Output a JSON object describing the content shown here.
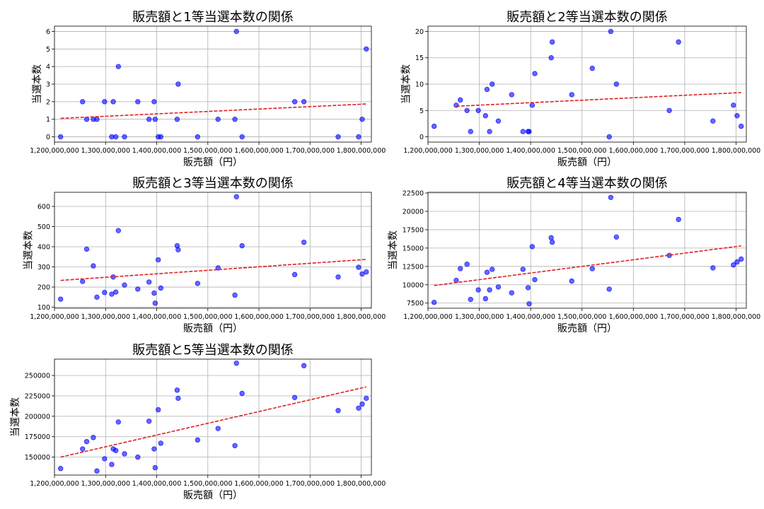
{
  "chart_data": [
    {
      "type": "scatter",
      "title": "販売額と1等当選本数の関係",
      "xlabel": "販売額（円）",
      "ylabel": "当選本数",
      "xlim": [
        1200000000,
        1820000000
      ],
      "ylim": [
        -0.3,
        6.3
      ],
      "xticks": [
        1200000000,
        1300000000,
        1400000000,
        1500000000,
        1600000000,
        1700000000,
        1800000000
      ],
      "xtick_labels": [
        "1,200,000,000",
        "1,300,000,000",
        "1,400,000,000",
        "1,500,000,000",
        "1,600,000,000",
        "1,700,000,000",
        "1,800,000,000"
      ],
      "yticks": [
        0,
        1,
        2,
        3,
        4,
        5,
        6
      ],
      "ytick_labels": [
        "0",
        "1",
        "2",
        "3",
        "4",
        "5",
        "6"
      ],
      "grid": true,
      "point_color": "#0000ff",
      "trend_color": "#e02020",
      "x": [
        1212000000,
        1255000000,
        1263000000,
        1276000000,
        1283000000,
        1298000000,
        1312000000,
        1315000000,
        1320000000,
        1325000000,
        1337000000,
        1363000000,
        1385000000,
        1395000000,
        1397000000,
        1403000000,
        1408000000,
        1440000000,
        1442000000,
        1480000000,
        1520000000,
        1553000000,
        1556000000,
        1567000000,
        1670000000,
        1688000000,
        1755000000,
        1795000000,
        1802000000,
        1810000000
      ],
      "y": [
        0,
        2,
        1,
        1,
        1,
        2,
        0,
        2,
        0,
        4,
        0,
        2,
        1,
        2,
        1,
        0,
        0,
        1,
        3,
        0,
        1,
        1,
        6,
        0,
        2,
        2,
        0,
        0,
        1,
        5
      ],
      "trend": {
        "x": [
          1212000000,
          1810000000
        ],
        "y": [
          1.05,
          1.87
        ]
      }
    },
    {
      "type": "scatter",
      "title": "販売額と2等当選本数の関係",
      "xlabel": "販売額（円）",
      "ylabel": "当選本数",
      "xlim": [
        1200000000,
        1820000000
      ],
      "ylim": [
        -1.0,
        21.0
      ],
      "xticks": [
        1200000000,
        1300000000,
        1400000000,
        1500000000,
        1600000000,
        1700000000,
        1800000000
      ],
      "xtick_labels": [
        "1,200,000,000",
        "1,300,000,000",
        "1,400,000,000",
        "1,500,000,000",
        "1,600,000,000",
        "1,700,000,000",
        "1,800,000,000"
      ],
      "yticks": [
        0,
        5,
        10,
        15,
        20
      ],
      "ytick_labels": [
        "0",
        "5",
        "10",
        "15",
        "20"
      ],
      "grid": true,
      "point_color": "#0000ff",
      "trend_color": "#e02020",
      "x": [
        1212000000,
        1255000000,
        1263000000,
        1276000000,
        1283000000,
        1298000000,
        1312000000,
        1315000000,
        1320000000,
        1325000000,
        1337000000,
        1363000000,
        1385000000,
        1395000000,
        1397000000,
        1403000000,
        1408000000,
        1440000000,
        1442000000,
        1480000000,
        1520000000,
        1553000000,
        1556000000,
        1567000000,
        1670000000,
        1688000000,
        1755000000,
        1795000000,
        1802000000,
        1810000000
      ],
      "y": [
        2,
        6,
        7,
        5,
        1,
        5,
        4,
        9,
        1,
        10,
        3,
        8,
        1,
        1,
        1,
        6,
        12,
        15,
        18,
        8,
        13,
        0,
        20,
        10,
        5,
        18,
        3,
        6,
        4,
        2
      ],
      "trend": {
        "x": [
          1255000000,
          1810000000
        ],
        "y": [
          5.8,
          8.4
        ]
      }
    },
    {
      "type": "scatter",
      "title": "販売額と3等当選本数の関係",
      "xlabel": "販売額（円）",
      "ylabel": "当選本数",
      "xlim": [
        1200000000,
        1820000000
      ],
      "ylim": [
        95,
        670
      ],
      "xticks": [
        1200000000,
        1300000000,
        1400000000,
        1500000000,
        1600000000,
        1700000000,
        1800000000
      ],
      "xtick_labels": [
        "1,200,000,000",
        "1,300,000,000",
        "1,400,000,000",
        "1,500,000,000",
        "1,600,000,000",
        "1,700,000,000",
        "1,800,000,000"
      ],
      "yticks": [
        100,
        200,
        300,
        400,
        500,
        600
      ],
      "ytick_labels": [
        "100",
        "200",
        "300",
        "400",
        "500",
        "600"
      ],
      "grid": true,
      "point_color": "#0000ff",
      "trend_color": "#e02020",
      "x": [
        1212000000,
        1255000000,
        1263000000,
        1276000000,
        1283000000,
        1298000000,
        1312000000,
        1315000000,
        1320000000,
        1325000000,
        1337000000,
        1363000000,
        1385000000,
        1395000000,
        1397000000,
        1403000000,
        1408000000,
        1440000000,
        1442000000,
        1480000000,
        1520000000,
        1553000000,
        1556000000,
        1567000000,
        1670000000,
        1688000000,
        1755000000,
        1795000000,
        1802000000,
        1810000000
      ],
      "y": [
        140,
        228,
        388,
        305,
        150,
        173,
        165,
        250,
        175,
        480,
        210,
        190,
        225,
        170,
        120,
        335,
        195,
        405,
        385,
        218,
        295,
        160,
        648,
        405,
        262,
        422,
        250,
        298,
        265,
        275
      ],
      "trend": {
        "x": [
          1212000000,
          1810000000
        ],
        "y": [
          233,
          337
        ]
      }
    },
    {
      "type": "scatter",
      "title": "販売額と4等当選本数の関係",
      "xlabel": "販売額（円）",
      "ylabel": "当選本数",
      "xlim": [
        1200000000,
        1820000000
      ],
      "ylim": [
        6800,
        22600
      ],
      "xticks": [
        1200000000,
        1300000000,
        1400000000,
        1500000000,
        1600000000,
        1700000000,
        1800000000
      ],
      "xtick_labels": [
        "1,200,000,000",
        "1,300,000,000",
        "1,400,000,000",
        "1,500,000,000",
        "1,600,000,000",
        "1,700,000,000",
        "1,800,000,000"
      ],
      "yticks": [
        7500,
        10000,
        12500,
        15000,
        17500,
        20000,
        22500
      ],
      "ytick_labels": [
        "7500",
        "10000",
        "12500",
        "15000",
        "17500",
        "20000",
        "22500"
      ],
      "grid": true,
      "point_color": "#0000ff",
      "trend_color": "#e02020",
      "x": [
        1212000000,
        1255000000,
        1263000000,
        1276000000,
        1283000000,
        1298000000,
        1312000000,
        1315000000,
        1320000000,
        1325000000,
        1337000000,
        1363000000,
        1385000000,
        1395000000,
        1397000000,
        1403000000,
        1408000000,
        1440000000,
        1442000000,
        1480000000,
        1520000000,
        1553000000,
        1556000000,
        1567000000,
        1670000000,
        1688000000,
        1755000000,
        1795000000,
        1802000000,
        1810000000
      ],
      "y": [
        7600,
        10600,
        12200,
        12800,
        8000,
        9300,
        8100,
        11700,
        9300,
        12100,
        9700,
        8900,
        12100,
        9600,
        7400,
        15200,
        10700,
        16400,
        15800,
        10500,
        12200,
        9400,
        21900,
        16500,
        14000,
        18900,
        12300,
        12700,
        13100,
        13500
      ],
      "trend": {
        "x": [
          1212000000,
          1810000000
        ],
        "y": [
          9900,
          15300
        ]
      }
    },
    {
      "type": "scatter",
      "title": "販売額と5等当選本数の関係",
      "xlabel": "販売額（円）",
      "ylabel": "当選本数",
      "xlim": [
        1200000000,
        1820000000
      ],
      "ylim": [
        128000,
        270000
      ],
      "xticks": [
        1200000000,
        1300000000,
        1400000000,
        1500000000,
        1600000000,
        1700000000,
        1800000000
      ],
      "xtick_labels": [
        "1,200,000,000",
        "1,300,000,000",
        "1,400,000,000",
        "1,500,000,000",
        "1,600,000,000",
        "1,700,000,000",
        "1,800,000,000"
      ],
      "yticks": [
        150000,
        175000,
        200000,
        225000,
        250000
      ],
      "ytick_labels": [
        "150000",
        "175000",
        "200000",
        "225000",
        "250000"
      ],
      "grid": true,
      "point_color": "#0000ff",
      "trend_color": "#e02020",
      "x": [
        1212000000,
        1255000000,
        1263000000,
        1276000000,
        1283000000,
        1298000000,
        1312000000,
        1315000000,
        1320000000,
        1325000000,
        1337000000,
        1363000000,
        1385000000,
        1395000000,
        1397000000,
        1403000000,
        1408000000,
        1440000000,
        1442000000,
        1480000000,
        1520000000,
        1553000000,
        1556000000,
        1567000000,
        1670000000,
        1688000000,
        1755000000,
        1795000000,
        1802000000,
        1810000000
      ],
      "y": [
        136000,
        160000,
        169000,
        174000,
        133000,
        148000,
        141000,
        160000,
        158000,
        193000,
        154000,
        150000,
        194000,
        160000,
        137000,
        208000,
        167000,
        232000,
        222000,
        171000,
        185000,
        164000,
        265000,
        228000,
        223000,
        262000,
        207000,
        210000,
        215000,
        222000
      ],
      "trend": {
        "x": [
          1212000000,
          1810000000
        ],
        "y": [
          150000,
          236000
        ]
      }
    }
  ]
}
